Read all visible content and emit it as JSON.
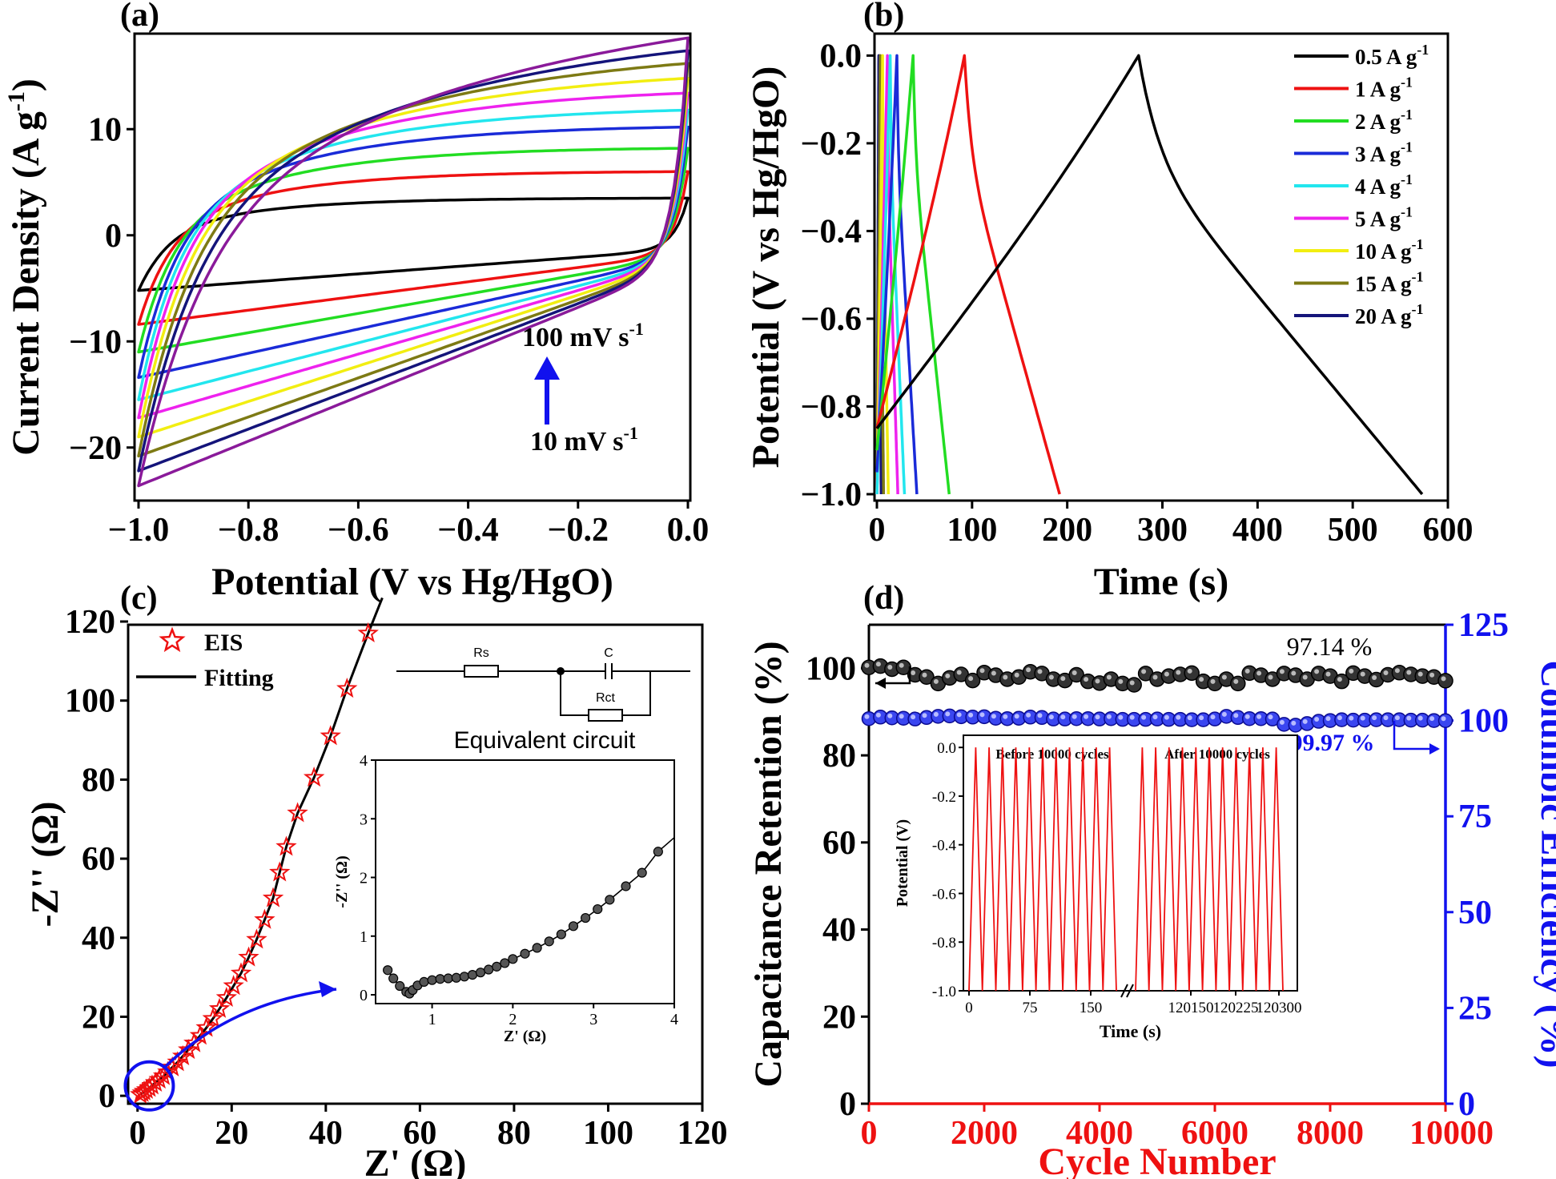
{
  "chart_data": [
    {
      "panel": "(a)",
      "type": "line",
      "xlabel": "Potential (V vs Hg/HgO)",
      "ylabel": "Current Density (A g",
      "ylabel_sup": "-1",
      "ylabel_end": ")",
      "xlim": [
        -1.0,
        0.0
      ],
      "ylim": [
        -25,
        19
      ],
      "xticks": [
        "−1.0",
        "−0.8",
        "−0.6",
        "−0.4",
        "−0.2",
        "0.0"
      ],
      "yticks": [
        "−20",
        "−10",
        "0",
        "10"
      ],
      "ytick_values": [
        -20,
        -10,
        0,
        10
      ],
      "annotation_top": "100 mV s",
      "annotation_bottom": "10 mV s",
      "annotation_sup": "-1",
      "series": [
        {
          "color": "#000000",
          "upper_end": 3.5,
          "lower_start": -5.2,
          "lower_end": -1.3
        },
        {
          "color": "#ee1111",
          "upper_end": 6.0,
          "lower_start": -8.4,
          "lower_end": -1.7
        },
        {
          "color": "#22dd22",
          "upper_end": 8.2,
          "lower_start": -11.0,
          "lower_end": -1.9
        },
        {
          "color": "#1a2bd8",
          "upper_end": 10.2,
          "lower_start": -13.4,
          "lower_end": -2.0
        },
        {
          "color": "#22e6ee",
          "upper_end": 11.8,
          "lower_start": -15.5,
          "lower_end": -2.1
        },
        {
          "color": "#ee22ee",
          "upper_end": 13.4,
          "lower_start": -17.2,
          "lower_end": -2.2
        },
        {
          "color": "#f2ee11",
          "upper_end": 14.8,
          "lower_start": -19.0,
          "lower_end": -2.3
        },
        {
          "color": "#7d7a14",
          "upper_end": 16.2,
          "lower_start": -20.8,
          "lower_end": -2.4
        },
        {
          "color": "#14147a",
          "upper_end": 17.4,
          "lower_start": -22.2,
          "lower_end": -2.5
        },
        {
          "color": "#8a1a9a",
          "upper_end": 18.6,
          "lower_start": -23.6,
          "lower_end": -2.6
        }
      ]
    },
    {
      "panel": "(b)",
      "type": "line",
      "xlabel": "Time (s)",
      "ylabel": "Potential (V vs Hg/HgO)",
      "xlim": [
        0,
        600
      ],
      "ylim": [
        -1.0,
        0.0
      ],
      "xticks": [
        "0",
        "100",
        "200",
        "300",
        "400",
        "500",
        "600"
      ],
      "xtick_values": [
        0,
        100,
        200,
        300,
        400,
        500,
        600
      ],
      "yticks": [
        "0.0",
        "−0.2",
        "−0.4",
        "−0.6",
        "−0.8",
        "−1.0"
      ],
      "ytick_values": [
        0,
        -0.2,
        -0.4,
        -0.6,
        -0.8,
        -1.0
      ],
      "legend_position": "top-right",
      "series": [
        {
          "name": "0.5 A g",
          "sup": "-1",
          "color": "#000000",
          "charge_start": 0,
          "peak": 275,
          "end": 573,
          "start_potential": -0.85
        },
        {
          "name": "1 A g",
          "sup": "-1",
          "color": "#ee1111",
          "charge_start": 0,
          "peak": 92,
          "end": 192,
          "start_potential": -0.85
        },
        {
          "name": "2 A g",
          "sup": "-1",
          "color": "#22dd22",
          "charge_start": 0,
          "peak": 38,
          "end": 76,
          "start_potential": -0.9
        },
        {
          "name": "3 A g",
          "sup": "-1",
          "color": "#1a2bd8",
          "charge_start": 0,
          "peak": 21,
          "end": 42,
          "start_potential": -0.95
        },
        {
          "name": "4 A g",
          "sup": "-1",
          "color": "#22e6ee",
          "charge_start": 0,
          "peak": 14,
          "end": 29,
          "start_potential": -1.0
        },
        {
          "name": "5 A g",
          "sup": "-1",
          "color": "#ee22ee",
          "charge_start": 0,
          "peak": 11,
          "end": 22,
          "start_potential": -1.0
        },
        {
          "name": "10 A g",
          "sup": "-1",
          "color": "#f2ee11",
          "charge_start": 0,
          "peak": 6,
          "end": 12,
          "start_potential": -1.0
        },
        {
          "name": "15 A g",
          "sup": "-1",
          "color": "#7d7a14",
          "charge_start": 0,
          "peak": 3.5,
          "end": 7,
          "start_potential": -1.0
        },
        {
          "name": "20 A g",
          "sup": "-1",
          "color": "#14147a",
          "charge_start": 0,
          "peak": 2,
          "end": 4.5,
          "start_potential": -1.0
        }
      ]
    },
    {
      "panel": "(c)",
      "type": "scatter",
      "xlabel": "Z' (Ω)",
      "ylabel": "-Z'' (Ω)",
      "xlim": [
        -2,
        120
      ],
      "ylim": [
        -2,
        120
      ],
      "xticks": [
        "0",
        "20",
        "40",
        "60",
        "80",
        "100",
        "120"
      ],
      "xtick_values": [
        0,
        20,
        40,
        60,
        80,
        100,
        120
      ],
      "yticks": [
        "0",
        "20",
        "40",
        "60",
        "80",
        "100",
        "120"
      ],
      "ytick_values": [
        0,
        20,
        40,
        60,
        80,
        100,
        120
      ],
      "legend": [
        {
          "name": "EIS",
          "marker": "star",
          "color": "#ee1111"
        },
        {
          "name": "Fitting",
          "marker": "line",
          "color": "#000000"
        }
      ],
      "circuit": {
        "caption": "Equivalent circuit",
        "labels": [
          "Rs",
          "C",
          "Rct"
        ]
      },
      "eis_points": [
        [
          0.6,
          0.3
        ],
        [
          1.0,
          0.7
        ],
        [
          1.4,
          1.1
        ],
        [
          1.9,
          1.5
        ],
        [
          2.5,
          2.0
        ],
        [
          3.1,
          2.6
        ],
        [
          3.8,
          3.3
        ],
        [
          4.6,
          4.1
        ],
        [
          5.5,
          5.0
        ],
        [
          6.4,
          6.0
        ],
        [
          7.4,
          7.2
        ],
        [
          8.5,
          8.5
        ],
        [
          9.6,
          10.0
        ],
        [
          10.8,
          11.6
        ],
        [
          12.0,
          13.3
        ],
        [
          13.3,
          15.2
        ],
        [
          14.6,
          17.2
        ],
        [
          16.0,
          19.5
        ],
        [
          17.4,
          22.0
        ],
        [
          18.9,
          24.8
        ],
        [
          20.4,
          27.8
        ],
        [
          22.0,
          31.0
        ],
        [
          23.6,
          35.0
        ],
        [
          25.3,
          39.5
        ],
        [
          27.0,
          44.5
        ],
        [
          28.8,
          50.0
        ],
        [
          30.2,
          56.5
        ],
        [
          31.6,
          63.0
        ],
        [
          34.0,
          71.5
        ],
        [
          37.5,
          80.5
        ],
        [
          41.0,
          91.0
        ],
        [
          44.5,
          103.0
        ],
        [
          49.0,
          117.0
        ]
      ],
      "inset": {
        "xlabel": "Z' (Ω)",
        "ylabel": "-Z'' (Ω)",
        "xlim": [
          0.3,
          4.0
        ],
        "ylim": [
          -0.15,
          4.0
        ],
        "xticks": [
          "1",
          "2",
          "3",
          "4"
        ],
        "xtick_values": [
          1,
          2,
          3,
          4
        ],
        "yticks": [
          "0",
          "1",
          "2",
          "3",
          "4"
        ],
        "ytick_values": [
          0,
          1,
          2,
          3,
          4
        ],
        "points": [
          [
            0.45,
            0.42
          ],
          [
            0.52,
            0.28
          ],
          [
            0.6,
            0.15
          ],
          [
            0.68,
            0.05
          ],
          [
            0.72,
            0.02
          ],
          [
            0.76,
            0.08
          ],
          [
            0.82,
            0.16
          ],
          [
            0.9,
            0.22
          ],
          [
            1.0,
            0.25
          ],
          [
            1.1,
            0.27
          ],
          [
            1.2,
            0.28
          ],
          [
            1.3,
            0.29
          ],
          [
            1.4,
            0.31
          ],
          [
            1.5,
            0.34
          ],
          [
            1.6,
            0.38
          ],
          [
            1.7,
            0.43
          ],
          [
            1.8,
            0.48
          ],
          [
            1.9,
            0.54
          ],
          [
            2.0,
            0.61
          ],
          [
            2.15,
            0.7
          ],
          [
            2.3,
            0.8
          ],
          [
            2.45,
            0.91
          ],
          [
            2.6,
            1.03
          ],
          [
            2.75,
            1.17
          ],
          [
            2.9,
            1.31
          ],
          [
            3.05,
            1.46
          ],
          [
            3.2,
            1.62
          ],
          [
            3.4,
            1.85
          ],
          [
            3.6,
            2.08
          ],
          [
            3.8,
            2.44
          ]
        ]
      }
    },
    {
      "panel": "(d)",
      "type": "scatter",
      "xlabel": "Cycle Number",
      "ylabel": "Capacitance Retention (%)",
      "ylabel_right": "Columbic Efficiency (%)",
      "xlim": [
        0,
        10000
      ],
      "ylim": [
        0,
        110
      ],
      "ylim_right": [
        0,
        125
      ],
      "xticks": [
        "0",
        "2000",
        "4000",
        "6000",
        "8000",
        "10000"
      ],
      "xtick_values": [
        0,
        2000,
        4000,
        6000,
        8000,
        10000
      ],
      "yticks": [
        "0",
        "20",
        "40",
        "60",
        "80",
        "100"
      ],
      "ytick_values": [
        0,
        20,
        40,
        60,
        80,
        100
      ],
      "yticks_right": [
        "0",
        "25",
        "50",
        "75",
        "100",
        "125"
      ],
      "ytick_values_right": [
        0,
        25,
        50,
        75,
        100,
        125
      ],
      "annotation_retention": "97.14 %",
      "annotation_efficiency": "99.97 %",
      "cycles": [
        0,
        200,
        400,
        600,
        800,
        1000,
        1200,
        1400,
        1600,
        1800,
        2000,
        2200,
        2400,
        2600,
        2800,
        3000,
        3200,
        3400,
        3600,
        3800,
        4000,
        4200,
        4400,
        4600,
        4800,
        5000,
        5200,
        5400,
        5600,
        5800,
        6000,
        6200,
        6400,
        6600,
        6800,
        7000,
        7200,
        7400,
        7600,
        7800,
        8000,
        8200,
        8400,
        8600,
        8800,
        9000,
        9200,
        9400,
        9600,
        9800,
        10000
      ],
      "retention": [
        100.2,
        100.5,
        99.8,
        100.2,
        98.5,
        98.0,
        96.5,
        97.8,
        98.6,
        97.2,
        99.0,
        98.4,
        97.5,
        98.0,
        99.2,
        98.8,
        97.5,
        97.2,
        98.5,
        97.0,
        96.6,
        97.5,
        96.5,
        96.2,
        98.8,
        97.5,
        98.2,
        98.6,
        98.9,
        97.0,
        96.5,
        97.5,
        96.5,
        98.9,
        98.4,
        97.5,
        98.8,
        98.4,
        97.5,
        98.8,
        98.2,
        97.0,
        98.9,
        98.2,
        97.4,
        98.5,
        99.0,
        98.6,
        98.2,
        98.0,
        97.14
      ],
      "efficiency": [
        100.5,
        100.9,
        100.7,
        100.6,
        100.4,
        100.8,
        101.1,
        101.2,
        101.0,
        100.9,
        101.0,
        100.6,
        100.5,
        100.6,
        100.9,
        100.8,
        100.4,
        100.4,
        100.5,
        100.5,
        100.4,
        100.5,
        100.3,
        100.3,
        100.3,
        100.4,
        100.3,
        100.3,
        100.2,
        100.2,
        100.4,
        101.1,
        100.8,
        100.5,
        100.5,
        100.4,
        99.0,
        98.8,
        99.2,
        99.8,
        100.0,
        100.2,
        100.1,
        100.1,
        100.2,
        100.2,
        100.2,
        100.1,
        100.1,
        100.0,
        99.97
      ],
      "inset": {
        "xlabel": "Time (s)",
        "ylabel": "Potential (V)",
        "label_before": "Before 10000 cycles",
        "label_after": "After 10000 cycles",
        "ylim": [
          -1.0,
          0.05
        ],
        "xticks": [
          "0",
          "75",
          "150",
          "120150",
          "120225",
          "120300"
        ],
        "yticks": [
          "0.0",
          "-0.2",
          "-0.4",
          "-0.6",
          "-0.8",
          "-1.0"
        ],
        "ytick_values": [
          0,
          -0.2,
          -0.4,
          -0.6,
          -0.8,
          -1.0
        ],
        "cycles_before": 11,
        "cycles_after": 11
      }
    }
  ]
}
